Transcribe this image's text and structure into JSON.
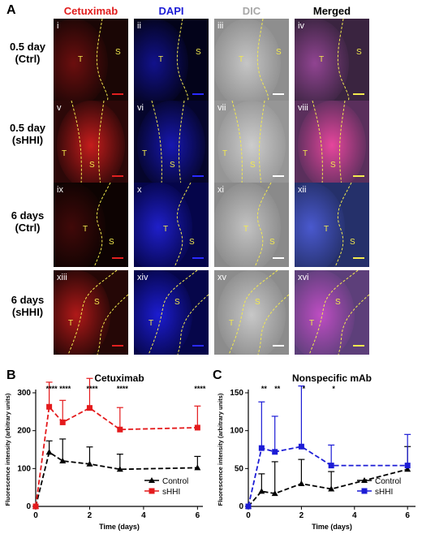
{
  "panel_a": {
    "letter": "A",
    "columns": [
      {
        "label": "Cetuximab",
        "color": "#e01b1b"
      },
      {
        "label": "DAPI",
        "color": "#1c1cd6"
      },
      {
        "label": "DIC",
        "color": "#a8a8a8"
      },
      {
        "label": "Merged",
        "color": "#000000"
      }
    ],
    "rows": [
      {
        "label_line1": "0.5 day",
        "label_line2": "(Ctrl)",
        "tiles": [
          {
            "numeral": "i",
            "t": "T",
            "s": "S"
          },
          {
            "numeral": "ii",
            "t": "T",
            "s": "S"
          },
          {
            "numeral": "iii",
            "t": "T",
            "s": "S"
          },
          {
            "numeral": "iv",
            "t": "T",
            "s": "S"
          }
        ]
      },
      {
        "label_line1": "0.5 day",
        "label_line2": "(sHHI)",
        "tiles": [
          {
            "numeral": "v",
            "t": "T",
            "s": "S"
          },
          {
            "numeral": "vi",
            "t": "T",
            "s": "S"
          },
          {
            "numeral": "vii",
            "t": "T",
            "s": "S"
          },
          {
            "numeral": "viii",
            "t": "T",
            "s": "S"
          }
        ]
      },
      {
        "label_line1": "6 days",
        "label_line2": "(Ctrl)",
        "tiles": [
          {
            "numeral": "ix",
            "t": "T",
            "s": "S"
          },
          {
            "numeral": "x",
            "t": "T",
            "s": "S"
          },
          {
            "numeral": "xi",
            "t": "T",
            "s": "S"
          },
          {
            "numeral": "xii",
            "t": "T",
            "s": "S"
          }
        ]
      },
      {
        "label_line1": "6 days",
        "label_line2": "(sHHI)",
        "tiles": [
          {
            "numeral": "xiii",
            "t": "T",
            "s": "S"
          },
          {
            "numeral": "xiv",
            "t": "T",
            "s": "S"
          },
          {
            "numeral": "xv",
            "t": "T",
            "s": "S"
          },
          {
            "numeral": "xvi",
            "t": "T",
            "s": "S"
          }
        ]
      }
    ]
  },
  "chart_data": [
    {
      "panel": "B",
      "type": "line",
      "title": "Cetuximab",
      "xlabel": "Time (days)",
      "ylabel": "Fluorescence intensity (arbitrary units)",
      "xlim": [
        0,
        6.2
      ],
      "ylim": [
        0,
        300
      ],
      "xticks": [
        0,
        2,
        4,
        6
      ],
      "yticks": [
        0,
        100,
        200,
        300
      ],
      "legend_position": "bottom-right",
      "significance": [
        {
          "x": 0.5,
          "label": "****"
        },
        {
          "x": 1,
          "label": "****"
        },
        {
          "x": 2,
          "label": "****"
        },
        {
          "x": 3.125,
          "label": "****"
        },
        {
          "x": 6,
          "label": "****"
        }
      ],
      "series": [
        {
          "name": "Control",
          "color": "#000000",
          "marker": "triangle",
          "x": [
            0,
            0.5,
            1,
            2,
            3.125,
            6
          ],
          "y": [
            0,
            143,
            120,
            112,
            98,
            102
          ],
          "err": [
            0,
            30,
            58,
            45,
            40,
            30
          ]
        },
        {
          "name": "sHHI",
          "color": "#e41a1c",
          "marker": "square",
          "x": [
            0,
            0.5,
            1,
            2,
            3.125,
            6
          ],
          "y": [
            0,
            263,
            222,
            260,
            203,
            208
          ],
          "err": [
            0,
            65,
            58,
            78,
            58,
            57
          ]
        }
      ]
    },
    {
      "panel": "C",
      "type": "line",
      "title": "Nonspecific mAb",
      "xlabel": "Time (days)",
      "ylabel": "Fluorescence intensity (arbitrary units)",
      "xlim": [
        0,
        6.3
      ],
      "ylim": [
        0,
        150
      ],
      "xticks": [
        0,
        2,
        4,
        6
      ],
      "yticks": [
        0,
        50,
        100,
        150
      ],
      "legend_position": "bottom-right",
      "significance": [
        {
          "x": 0.5,
          "label": "**"
        },
        {
          "x": 1,
          "label": "**"
        },
        {
          "x": 2,
          "label": "*"
        },
        {
          "x": 3.125,
          "label": "*"
        }
      ],
      "series": [
        {
          "name": "Control",
          "color": "#000000",
          "marker": "triangle",
          "x": [
            0,
            0.5,
            1,
            2,
            3.125,
            6
          ],
          "y": [
            0,
            20,
            17,
            30,
            23,
            49
          ],
          "err": [
            0,
            23,
            42,
            32,
            23,
            30
          ]
        },
        {
          "name": "sHHI",
          "color": "#1c1cd6",
          "marker": "square",
          "x": [
            0,
            0.5,
            1,
            2,
            3.125,
            6
          ],
          "y": [
            0,
            77,
            72,
            79,
            54,
            54
          ],
          "err": [
            0,
            61,
            47,
            80,
            27,
            41
          ]
        }
      ]
    }
  ]
}
